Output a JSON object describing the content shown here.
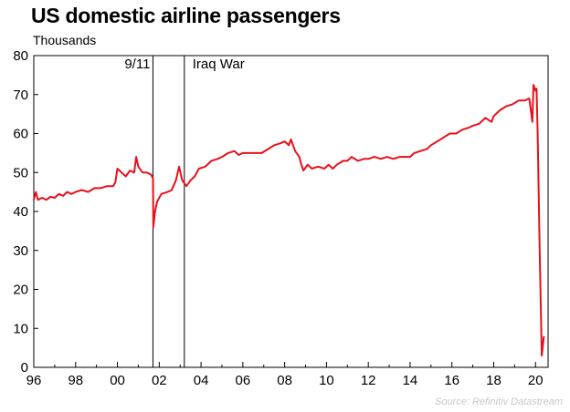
{
  "chart_data": {
    "type": "line",
    "title": "US domestic airline passengers",
    "ylabel": "Thousands",
    "xlabel": "",
    "ylim": [
      0,
      80
    ],
    "xlim": [
      1996.0,
      2020.6
    ],
    "yticks": [
      0,
      10,
      20,
      30,
      40,
      50,
      60,
      70,
      80
    ],
    "xticks": [
      {
        "value": 1996,
        "label": "96"
      },
      {
        "value": 1998,
        "label": "98"
      },
      {
        "value": 2000,
        "label": "00"
      },
      {
        "value": 2002,
        "label": "02"
      },
      {
        "value": 2004,
        "label": "04"
      },
      {
        "value": 2006,
        "label": "06"
      },
      {
        "value": 2008,
        "label": "08"
      },
      {
        "value": 2010,
        "label": "10"
      },
      {
        "value": 2012,
        "label": "12"
      },
      {
        "value": 2014,
        "label": "14"
      },
      {
        "value": 2016,
        "label": "16"
      },
      {
        "value": 2018,
        "label": "18"
      },
      {
        "value": 2020,
        "label": "20"
      }
    ],
    "grid": false,
    "annotations": [
      {
        "x": 2001.7,
        "label": "9/11",
        "side": "left"
      },
      {
        "x": 2003.2,
        "label": "Iraq War",
        "side": "right"
      }
    ],
    "series": [
      {
        "color": "#e8101a",
        "points": [
          [
            1996.0,
            43
          ],
          [
            1996.1,
            45
          ],
          [
            1996.2,
            43
          ],
          [
            1996.4,
            43.5
          ],
          [
            1996.6,
            43
          ],
          [
            1996.8,
            43.8
          ],
          [
            1997.0,
            43.5
          ],
          [
            1997.2,
            44.5
          ],
          [
            1997.4,
            44
          ],
          [
            1997.6,
            45
          ],
          [
            1997.8,
            44.5
          ],
          [
            1998.0,
            45
          ],
          [
            1998.3,
            45.5
          ],
          [
            1998.6,
            45
          ],
          [
            1998.9,
            46
          ],
          [
            1999.2,
            46
          ],
          [
            1999.5,
            46.5
          ],
          [
            1999.8,
            46.5
          ],
          [
            1999.9,
            47.5
          ],
          [
            2000.0,
            51
          ],
          [
            2000.2,
            50
          ],
          [
            2000.4,
            49
          ],
          [
            2000.6,
            50.5
          ],
          [
            2000.8,
            50
          ],
          [
            2000.9,
            54
          ],
          [
            2001.0,
            51.5
          ],
          [
            2001.2,
            50
          ],
          [
            2001.4,
            50
          ],
          [
            2001.6,
            49.5
          ],
          [
            2001.7,
            48.5
          ],
          [
            2001.72,
            36
          ],
          [
            2001.8,
            40
          ],
          [
            2001.9,
            42.5
          ],
          [
            2002.1,
            44.5
          ],
          [
            2002.4,
            45
          ],
          [
            2002.6,
            45.5
          ],
          [
            2002.8,
            48
          ],
          [
            2002.95,
            51.5
          ],
          [
            2003.1,
            48
          ],
          [
            2003.3,
            46.5
          ],
          [
            2003.5,
            48
          ],
          [
            2003.7,
            49
          ],
          [
            2003.9,
            51
          ],
          [
            2004.2,
            51.5
          ],
          [
            2004.5,
            53
          ],
          [
            2004.8,
            53.5
          ],
          [
            2005.0,
            54
          ],
          [
            2005.3,
            55
          ],
          [
            2005.6,
            55.5
          ],
          [
            2005.8,
            54.5
          ],
          [
            2006.0,
            55
          ],
          [
            2006.3,
            55
          ],
          [
            2006.6,
            55
          ],
          [
            2006.9,
            55
          ],
          [
            2007.2,
            56
          ],
          [
            2007.5,
            57
          ],
          [
            2007.8,
            57.5
          ],
          [
            2008.0,
            58
          ],
          [
            2008.2,
            57
          ],
          [
            2008.3,
            58.5
          ],
          [
            2008.5,
            55.5
          ],
          [
            2008.7,
            54
          ],
          [
            2008.8,
            52
          ],
          [
            2008.9,
            50.5
          ],
          [
            2009.1,
            52
          ],
          [
            2009.3,
            51
          ],
          [
            2009.6,
            51.5
          ],
          [
            2009.9,
            51
          ],
          [
            2010.1,
            52
          ],
          [
            2010.3,
            51
          ],
          [
            2010.5,
            52
          ],
          [
            2010.8,
            53
          ],
          [
            2011.0,
            53
          ],
          [
            2011.2,
            54
          ],
          [
            2011.5,
            53
          ],
          [
            2011.8,
            53.5
          ],
          [
            2012.0,
            53.5
          ],
          [
            2012.3,
            54
          ],
          [
            2012.6,
            53.5
          ],
          [
            2012.9,
            54
          ],
          [
            2013.2,
            53.5
          ],
          [
            2013.5,
            54
          ],
          [
            2013.8,
            54
          ],
          [
            2014.0,
            54
          ],
          [
            2014.2,
            55
          ],
          [
            2014.5,
            55.5
          ],
          [
            2014.8,
            56
          ],
          [
            2015.0,
            57
          ],
          [
            2015.3,
            58
          ],
          [
            2015.6,
            59
          ],
          [
            2015.9,
            60
          ],
          [
            2016.2,
            60
          ],
          [
            2016.5,
            61
          ],
          [
            2016.8,
            61.5
          ],
          [
            2017.0,
            62
          ],
          [
            2017.3,
            62.5
          ],
          [
            2017.6,
            64
          ],
          [
            2017.9,
            63
          ],
          [
            2018.0,
            64.5
          ],
          [
            2018.3,
            66
          ],
          [
            2018.6,
            67
          ],
          [
            2018.9,
            67.5
          ],
          [
            2019.2,
            68.5
          ],
          [
            2019.5,
            68.5
          ],
          [
            2019.7,
            69
          ],
          [
            2019.8,
            65
          ],
          [
            2019.85,
            63
          ],
          [
            2019.9,
            72.5
          ],
          [
            2020.0,
            71
          ],
          [
            2020.05,
            71.5
          ],
          [
            2020.1,
            60
          ],
          [
            2020.2,
            30
          ],
          [
            2020.3,
            3
          ],
          [
            2020.4,
            8
          ]
        ]
      }
    ],
    "source": "Source: Refinitiv Datastream"
  }
}
